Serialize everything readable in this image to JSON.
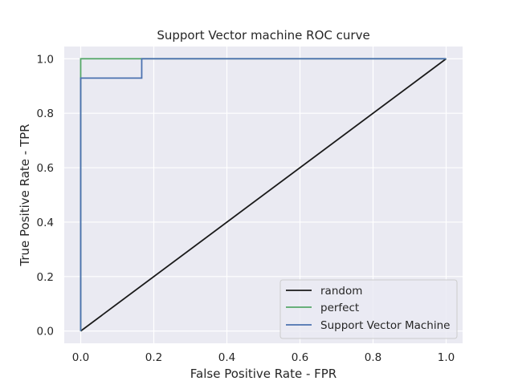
{
  "chart_data": {
    "type": "line",
    "title": "Support Vector machine ROC curve",
    "xlabel": "False Positive Rate - FPR",
    "ylabel": "True Positive Rate - TPR",
    "xlim": [
      -0.045,
      1.045
    ],
    "ylim": [
      -0.045,
      1.045
    ],
    "x_ticks": [
      "0.0",
      "0.2",
      "0.4",
      "0.6",
      "0.8",
      "1.0"
    ],
    "y_ticks": [
      "0.0",
      "0.2",
      "0.4",
      "0.6",
      "0.8",
      "1.0"
    ],
    "grid": true,
    "background": "#EAEAF2",
    "legend_position": "lower right",
    "series": [
      {
        "name": "random",
        "color": "#1a1a1a",
        "x": [
          0,
          1
        ],
        "y": [
          0,
          1
        ]
      },
      {
        "name": "perfect",
        "color": "#55A868",
        "x": [
          0,
          0,
          1
        ],
        "y": [
          0,
          1,
          1
        ]
      },
      {
        "name": "Support Vector Machine",
        "color": "#4C72B0",
        "x": [
          0,
          0,
          0.167,
          0.167,
          1
        ],
        "y": [
          0,
          0.929,
          0.929,
          1,
          1
        ]
      }
    ]
  }
}
